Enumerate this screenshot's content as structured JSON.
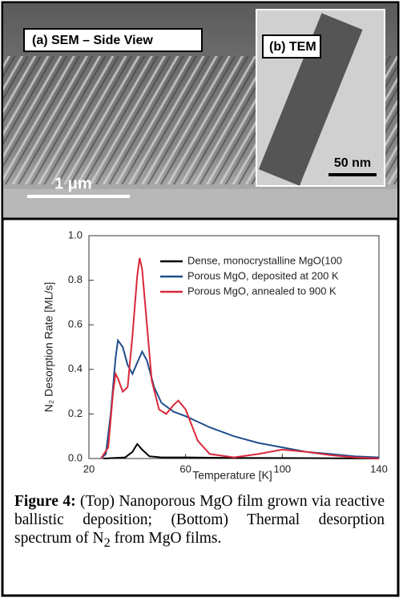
{
  "image_panel": {
    "sem_label": "(a) SEM – Side View",
    "tem_label": "(b) TEM",
    "tem_scale": "50 nm",
    "sem_scale": "1 μm"
  },
  "chart_data": {
    "type": "line",
    "xlabel": "Temperature [K]",
    "ylabel": "N₂ Desorption Rate [ML/s]",
    "xlim": [
      20,
      140
    ],
    "xticks": [
      20,
      60,
      100,
      140
    ],
    "ylim": [
      0,
      1.0
    ],
    "yticks": [
      {
        "value": 0,
        "label": "0.0"
      },
      0.2,
      0.4,
      0.6,
      0.8,
      {
        "value": 1.0,
        "label": "1.0"
      }
    ],
    "legend": "upper right",
    "series": [
      {
        "name": "Dense, monocrystalline MgO(100",
        "color": "#000000",
        "x": [
          26,
          35,
          38,
          40,
          42,
          45,
          50,
          60,
          80,
          100,
          140
        ],
        "values": [
          0,
          0.005,
          0.03,
          0.065,
          0.04,
          0.01,
          0.005,
          0.005,
          0.003,
          0.002,
          0
        ]
      },
      {
        "name": "Porous MgO, deposited at 200 K",
        "color": "#1f4e8c",
        "x": [
          25,
          27,
          29,
          31,
          32,
          34,
          36,
          38,
          40,
          42,
          44,
          47,
          50,
          55,
          60,
          70,
          80,
          90,
          100,
          110,
          120,
          130,
          140
        ],
        "values": [
          0,
          0.02,
          0.2,
          0.45,
          0.53,
          0.5,
          0.42,
          0.38,
          0.43,
          0.48,
          0.44,
          0.32,
          0.25,
          0.21,
          0.19,
          0.14,
          0.1,
          0.07,
          0.05,
          0.03,
          0.02,
          0.01,
          0.005
        ]
      },
      {
        "name": "Porous MgO, annealed to 900 K",
        "color": "#d9283a",
        "x": [
          25,
          28,
          30,
          31,
          32,
          34,
          36,
          38,
          40,
          41,
          42,
          44,
          46,
          49,
          52,
          55,
          57,
          60,
          65,
          70,
          80,
          90,
          100,
          110,
          120,
          130,
          140
        ],
        "values": [
          0,
          0.05,
          0.3,
          0.38,
          0.36,
          0.3,
          0.32,
          0.55,
          0.82,
          0.9,
          0.85,
          0.6,
          0.35,
          0.22,
          0.2,
          0.24,
          0.26,
          0.22,
          0.08,
          0.02,
          0.005,
          0.02,
          0.04,
          0.03,
          0.015,
          0.005,
          0
        ]
      }
    ]
  },
  "caption": {
    "label": "Figure 4:",
    "text": " (Top) Nanoporous MgO film grown via reactive ballistic deposition; (Bottom) Thermal desorption spectrum of ",
    "n": "N",
    "sub": "2",
    "tail": " from MgO films."
  }
}
